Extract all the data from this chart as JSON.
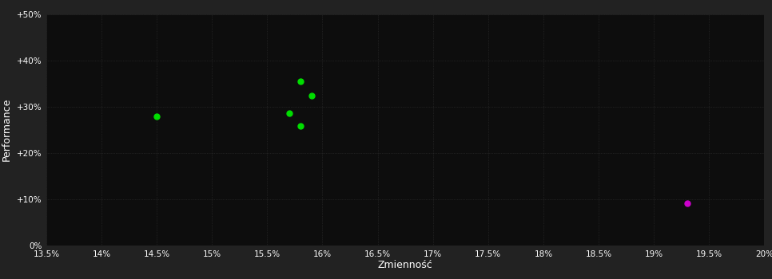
{
  "background_color": "#222222",
  "plot_bg_color": "#0d0d0d",
  "grid_color": "#3a3a3a",
  "text_color": "#ffffff",
  "xlabel": "Zmienność",
  "ylabel": "Performance",
  "xlim": [
    0.135,
    0.2
  ],
  "ylim": [
    0.0,
    0.5
  ],
  "xticks": [
    0.135,
    0.14,
    0.145,
    0.15,
    0.155,
    0.16,
    0.165,
    0.17,
    0.175,
    0.18,
    0.185,
    0.19,
    0.195,
    0.2
  ],
  "yticks": [
    0.0,
    0.1,
    0.2,
    0.3,
    0.4,
    0.5
  ],
  "ytick_labels": [
    "0%",
    "+10%",
    "+20%",
    "+30%",
    "+40%",
    "+50%"
  ],
  "xtick_labels": [
    "13.5%",
    "14%",
    "14.5%",
    "15%",
    "15.5%",
    "16%",
    "16.5%",
    "17%",
    "17.5%",
    "18%",
    "18.5%",
    "19%",
    "19.5%",
    "20%"
  ],
  "green_points": [
    [
      0.145,
      0.278
    ],
    [
      0.158,
      0.355
    ],
    [
      0.159,
      0.323
    ],
    [
      0.157,
      0.285
    ],
    [
      0.158,
      0.258
    ]
  ],
  "magenta_points": [
    [
      0.193,
      0.092
    ]
  ],
  "green_color": "#00dd00",
  "magenta_color": "#cc00cc",
  "marker_size": 5,
  "grid_linestyle": ":",
  "grid_linewidth": 0.5,
  "figsize": [
    9.66,
    3.5
  ],
  "dpi": 100
}
